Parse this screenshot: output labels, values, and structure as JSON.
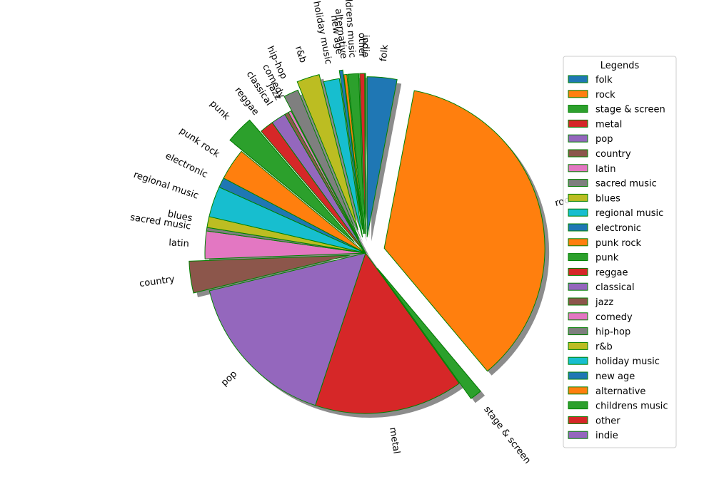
{
  "chart_data": {
    "type": "pie",
    "title": "",
    "legend_title": "Legends",
    "legend_placement": "right",
    "start_angle_deg": 90,
    "direction": "clockwise",
    "slice_edge_color": "#008000",
    "shadow": true,
    "slices": [
      {
        "label": "folk",
        "value": 3.0,
        "color": "#1f77b4",
        "explode": 0.1
      },
      {
        "label": "rock",
        "value": 36.0,
        "color": "#ff7f0e",
        "explode": 0.12
      },
      {
        "label": "stage & screen",
        "value": 1.2,
        "color": "#2ca02c",
        "explode": 0.12
      },
      {
        "label": "metal",
        "value": 15.0,
        "color": "#d62728",
        "explode": 0.0
      },
      {
        "label": "pop",
        "value": 16.2,
        "color": "#9467bd",
        "explode": 0.0
      },
      {
        "label": "country",
        "value": 3.2,
        "color": "#8c564b",
        "explode": 0.1
      },
      {
        "label": "latin",
        "value": 2.8,
        "color": "#e377c2",
        "explode": 0.0
      },
      {
        "label": "sacred music",
        "value": 0.35,
        "color": "#7f7f7f",
        "explode": 0.0
      },
      {
        "label": "blues",
        "value": 1.1,
        "color": "#bcbd22",
        "explode": 0.0
      },
      {
        "label": "regional music",
        "value": 3.1,
        "color": "#17becf",
        "explode": 0.0
      },
      {
        "label": "electronic",
        "value": 1.0,
        "color": "#1f77b4",
        "explode": 0.0
      },
      {
        "label": "punk rock",
        "value": 3.2,
        "color": "#ff7f0e",
        "explode": 0.0
      },
      {
        "label": "punk",
        "value": 2.8,
        "color": "#2ca02c",
        "explode": 0.1
      },
      {
        "label": "reggae",
        "value": 1.4,
        "color": "#d62728",
        "explode": 0.0
      },
      {
        "label": "classical",
        "value": 1.5,
        "color": "#9467bd",
        "explode": 0.0
      },
      {
        "label": "jazz",
        "value": 0.4,
        "color": "#8c564b",
        "explode": 0.0
      },
      {
        "label": "comedy",
        "value": 0.3,
        "color": "#e377c2",
        "explode": 0.0
      },
      {
        "label": "hip-hop",
        "value": 1.5,
        "color": "#7f7f7f",
        "explode": 0.1
      },
      {
        "label": "r&b",
        "value": 2.3,
        "color": "#bcbd22",
        "explode": 0.15
      },
      {
        "label": "holiday music",
        "value": 1.6,
        "color": "#17becf",
        "explode": 0.1
      },
      {
        "label": "new age",
        "value": 0.35,
        "color": "#1f77b4",
        "explode": 0.15
      },
      {
        "label": "alternative",
        "value": 0.3,
        "color": "#ff7f0e",
        "explode": 0.12
      },
      {
        "label": "childrens music",
        "value": 1.1,
        "color": "#2ca02c",
        "explode": 0.12
      },
      {
        "label": "other",
        "value": 0.5,
        "color": "#d62728",
        "explode": 0.12
      },
      {
        "label": "indie",
        "value": 0.05,
        "color": "#9467bd",
        "explode": 0.12
      }
    ]
  }
}
